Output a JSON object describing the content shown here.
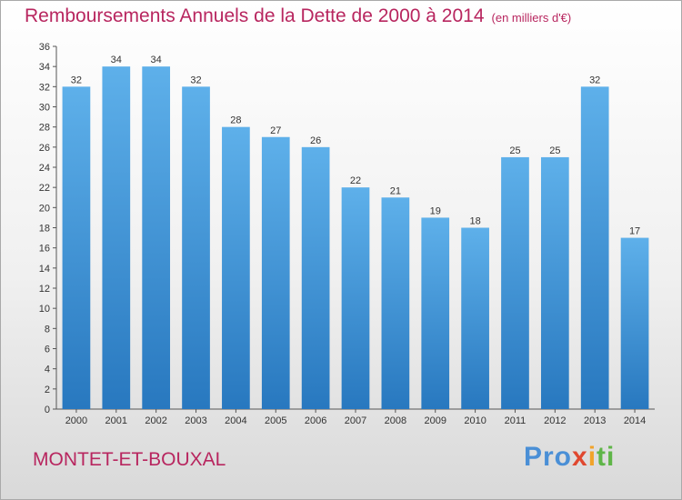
{
  "title": "Remboursements Annuels de la Dette de 2000 à 2014",
  "subtitle": "(en milliers d'€)",
  "location": "MONTET-ET-BOUXAL",
  "logo": {
    "p1": "Pro",
    "p2": "x",
    "p3": "i",
    "p4": "ti"
  },
  "colors": {
    "bar_top": "#5eb0ea",
    "bar_bottom": "#2878bf",
    "title": "#b8265f"
  },
  "chart_data": {
    "type": "bar",
    "categories": [
      "2000",
      "2001",
      "2002",
      "2003",
      "2004",
      "2005",
      "2006",
      "2007",
      "2008",
      "2009",
      "2010",
      "2011",
      "2012",
      "2013",
      "2014"
    ],
    "values": [
      32,
      34,
      34,
      32,
      28,
      27,
      26,
      22,
      21,
      19,
      18,
      25,
      25,
      32,
      17
    ],
    "ylim": [
      0,
      36
    ],
    "yticks": [
      0,
      2,
      4,
      6,
      8,
      10,
      12,
      14,
      16,
      18,
      20,
      22,
      24,
      26,
      28,
      30,
      32,
      34,
      36
    ],
    "grid": false,
    "xlabel": "",
    "ylabel": ""
  }
}
